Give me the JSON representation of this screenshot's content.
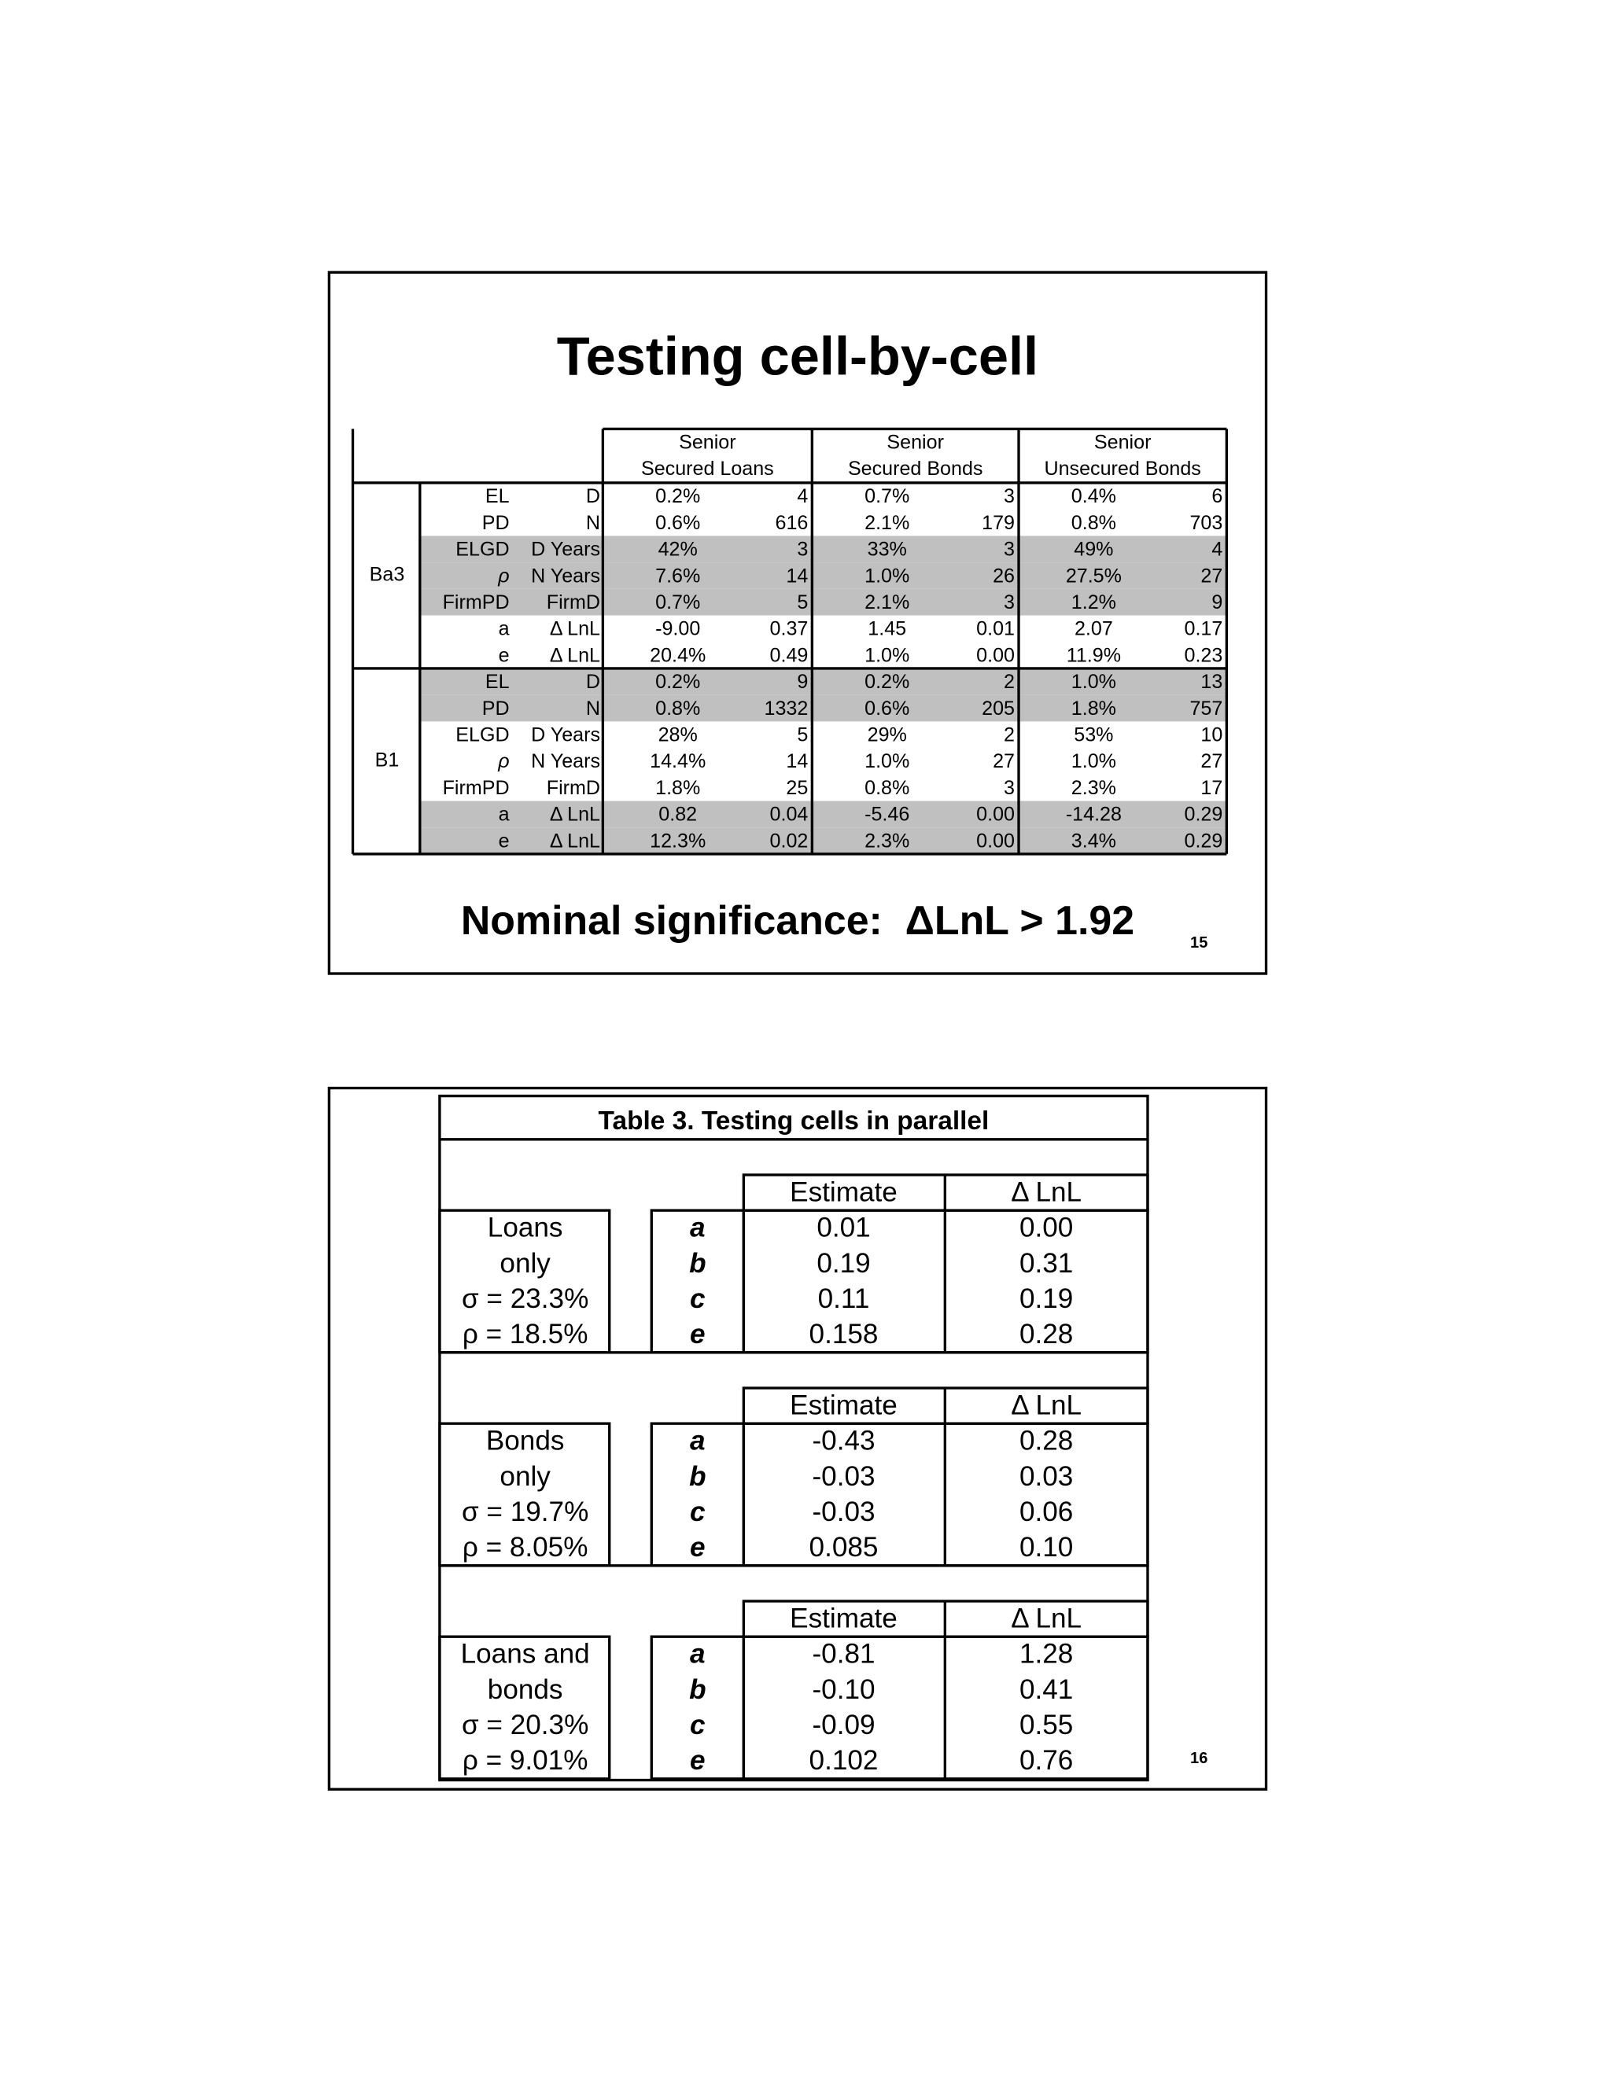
{
  "slides": [
    {
      "title": "Testing cell-by-cell",
      "table": {
        "header": [
          [
            "Senior",
            "Secured Loans"
          ],
          [
            "Senior",
            "Secured Bonds"
          ],
          [
            "Senior",
            "Unsecured Bonds"
          ]
        ],
        "groups": [
          {
            "label": "Ba3",
            "rows": [
              [
                "EL",
                "D",
                "0.2%",
                "4",
                "0.7%",
                "3",
                "0.4%",
                "6"
              ],
              [
                "PD",
                "N",
                "0.6%",
                "616",
                "2.1%",
                "179",
                "0.8%",
                "703"
              ],
              [
                "ELGD",
                "D Years",
                "42%",
                "3",
                "33%",
                "3",
                "49%",
                "4"
              ],
              [
                "ρ",
                "N Years",
                "7.6%",
                "14",
                "1.0%",
                "26",
                "27.5%",
                "27"
              ],
              [
                "FirmPD",
                "FirmD",
                "0.7%",
                "5",
                "2.1%",
                "3",
                "1.2%",
                "9"
              ],
              [
                "a",
                "Δ LnL",
                "-9.00",
                "0.37",
                "1.45",
                "0.01",
                "2.07",
                "0.17"
              ],
              [
                "e",
                "Δ LnL",
                "20.4%",
                "0.49",
                "1.0%",
                "0.00",
                "11.9%",
                "0.23"
              ]
            ]
          },
          {
            "label": "B1",
            "rows": [
              [
                "EL",
                "D",
                "0.2%",
                "9",
                "0.2%",
                "2",
                "1.0%",
                "13"
              ],
              [
                "PD",
                "N",
                "0.8%",
                "1332",
                "0.6%",
                "205",
                "1.8%",
                "757"
              ],
              [
                "ELGD",
                "D Years",
                "28%",
                "5",
                "29%",
                "2",
                "53%",
                "10"
              ],
              [
                "ρ",
                "N Years",
                "14.4%",
                "14",
                "1.0%",
                "27",
                "1.0%",
                "27"
              ],
              [
                "FirmPD",
                "FirmD",
                "1.8%",
                "25",
                "0.8%",
                "3",
                "2.3%",
                "17"
              ],
              [
                "a",
                "Δ LnL",
                "0.82",
                "0.04",
                "-5.46",
                "0.00",
                "-14.28",
                "0.29"
              ],
              [
                "e",
                "Δ LnL",
                "12.3%",
                "0.02",
                "2.3%",
                "0.00",
                "3.4%",
                "0.29"
              ]
            ]
          }
        ]
      },
      "footer": "Nominal significance:  ΔLnL > 1.92",
      "page": "15"
    },
    {
      "table": {
        "title": "Table 3. Testing cells in parallel",
        "blocks": [
          {
            "label": [
              "Loans",
              "only",
              "σ = 23.3%",
              "ρ = 18.5%"
            ],
            "header": [
              "Estimate",
              "Δ LnL"
            ],
            "rows": [
              [
                "a",
                "0.01",
                "0.00"
              ],
              [
                "b",
                "0.19",
                "0.31"
              ],
              [
                "c",
                "0.11",
                "0.19"
              ],
              [
                "e",
                "0.158",
                "0.28"
              ]
            ]
          },
          {
            "label": [
              "Bonds",
              "only",
              "σ = 19.7%",
              "ρ = 8.05%"
            ],
            "header": [
              "Estimate",
              "Δ LnL"
            ],
            "rows": [
              [
                "a",
                "-0.43",
                "0.28"
              ],
              [
                "b",
                "-0.03",
                "0.03"
              ],
              [
                "c",
                "-0.03",
                "0.06"
              ],
              [
                "e",
                "0.085",
                "0.10"
              ]
            ]
          },
          {
            "label": [
              "Loans and",
              "bonds",
              "σ = 20.3%",
              "ρ = 9.01%"
            ],
            "header": [
              "Estimate",
              "Δ LnL"
            ],
            "rows": [
              [
                "a",
                "-0.81",
                "1.28"
              ],
              [
                "b",
                "-0.10",
                "0.41"
              ],
              [
                "c",
                "-0.09",
                "0.55"
              ],
              [
                "e",
                "0.102",
                "0.76"
              ]
            ]
          }
        ]
      },
      "page": "16"
    }
  ]
}
